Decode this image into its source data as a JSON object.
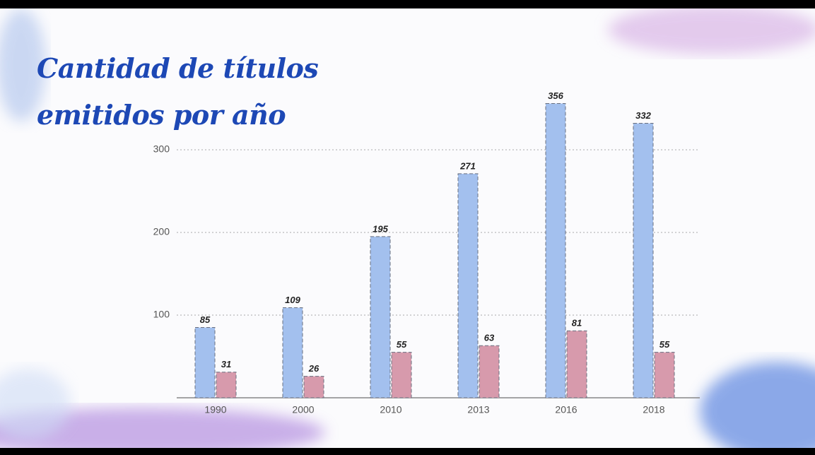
{
  "chart_data": {
    "type": "bar",
    "title": "Cantidad de títulos emitidos por año",
    "categories": [
      "1990",
      "2000",
      "2010",
      "2013",
      "2016",
      "2018"
    ],
    "series": [
      {
        "color": "#a3c0ee",
        "values": [
          85,
          109,
          195,
          271,
          356,
          332
        ]
      },
      {
        "color": "#d79aac",
        "values": [
          31,
          26,
          55,
          63,
          81,
          55
        ]
      }
    ],
    "ylim": [
      0,
      380
    ],
    "yticks": [
      100,
      200,
      300
    ],
    "grid": true
  }
}
